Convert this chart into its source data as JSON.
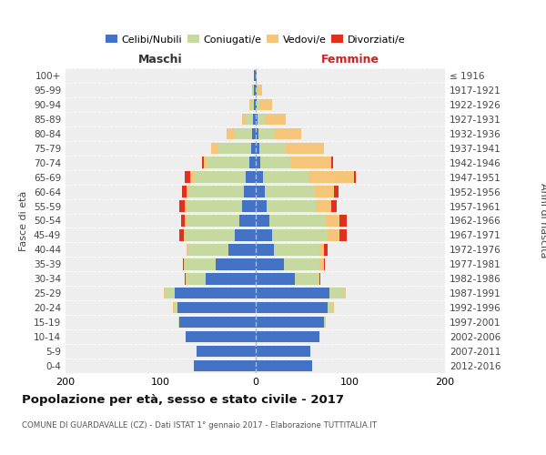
{
  "age_groups": [
    "0-4",
    "5-9",
    "10-14",
    "15-19",
    "20-24",
    "25-29",
    "30-34",
    "35-39",
    "40-44",
    "45-49",
    "50-54",
    "55-59",
    "60-64",
    "65-69",
    "70-74",
    "75-79",
    "80-84",
    "85-89",
    "90-94",
    "95-99",
    "100+"
  ],
  "birth_years": [
    "2012-2016",
    "2007-2011",
    "2002-2006",
    "1997-2001",
    "1992-1996",
    "1987-1991",
    "1982-1986",
    "1977-1981",
    "1972-1976",
    "1967-1971",
    "1962-1966",
    "1957-1961",
    "1952-1956",
    "1947-1951",
    "1942-1946",
    "1937-1941",
    "1932-1936",
    "1927-1931",
    "1922-1926",
    "1917-1921",
    "≤ 1916"
  ],
  "males_celibi": [
    65,
    62,
    73,
    80,
    82,
    85,
    52,
    42,
    28,
    22,
    17,
    14,
    12,
    10,
    6,
    4,
    3,
    2,
    1,
    1,
    1
  ],
  "males_coniugati": [
    0,
    0,
    0,
    1,
    4,
    10,
    20,
    32,
    42,
    52,
    55,
    58,
    58,
    55,
    45,
    35,
    20,
    8,
    3,
    1,
    0
  ],
  "males_vedovi": [
    0,
    0,
    0,
    0,
    1,
    1,
    1,
    1,
    2,
    1,
    2,
    2,
    2,
    4,
    3,
    8,
    7,
    4,
    2,
    1,
    0
  ],
  "males_divorziati": [
    0,
    0,
    0,
    0,
    0,
    0,
    1,
    1,
    0,
    5,
    4,
    6,
    5,
    5,
    2,
    0,
    0,
    0,
    0,
    0,
    0
  ],
  "females_nubili": [
    60,
    58,
    68,
    72,
    76,
    78,
    42,
    30,
    20,
    18,
    15,
    12,
    10,
    8,
    5,
    4,
    3,
    2,
    1,
    1,
    1
  ],
  "females_coniugate": [
    0,
    0,
    0,
    2,
    6,
    16,
    25,
    38,
    48,
    58,
    58,
    52,
    53,
    48,
    33,
    28,
    17,
    8,
    3,
    1,
    0
  ],
  "females_vedove": [
    0,
    0,
    0,
    0,
    1,
    1,
    1,
    4,
    4,
    13,
    16,
    16,
    20,
    48,
    42,
    40,
    28,
    22,
    14,
    5,
    0
  ],
  "females_divorziate": [
    0,
    0,
    0,
    0,
    0,
    0,
    1,
    1,
    4,
    7,
    7,
    6,
    5,
    2,
    2,
    0,
    0,
    0,
    0,
    0,
    0
  ],
  "color_celibi": "#4472c4",
  "color_coniugati": "#c5d9a0",
  "color_vedovi": "#f5c57a",
  "color_divorziati": "#e03020",
  "bg_color": "#eeeeee",
  "xlim": 200,
  "bar_height": 0.78,
  "title": "Popolazione per età, sesso e stato civile - 2017",
  "subtitle": "COMUNE DI GUARDAVALLE (CZ) - Dati ISTAT 1° gennaio 2017 - Elaborazione TUTTITALIA.IT",
  "maschi_label": "Maschi",
  "femmine_label": "Femmine",
  "ylabel_left": "Fasce di età",
  "ylabel_right": "Anni di nascita",
  "legend_labels": [
    "Celibi/Nubili",
    "Coniugati/e",
    "Vedovi/e",
    "Divorziati/e"
  ]
}
